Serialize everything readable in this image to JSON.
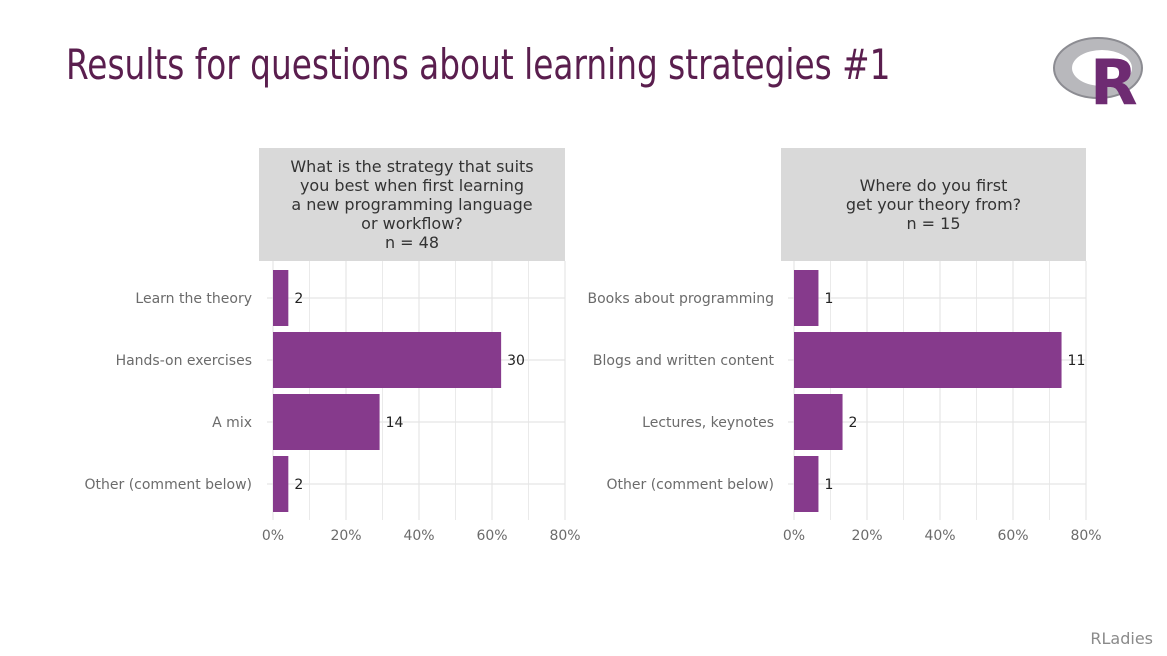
{
  "slide": {
    "title": "Results for questions about learning strategies #1",
    "footer": "RLadies",
    "logo_text": "R"
  },
  "colors": {
    "bar": "#863a8c",
    "title": "#5a1e4e",
    "panel_header": "#d9d9d9",
    "grid": "#e5e5e5"
  },
  "chart_data": [
    {
      "type": "bar",
      "orientation": "horizontal",
      "title": "What is the strategy that suits\nyou best when first learning\na new programming language\nor workflow?\nn = 48",
      "categories": [
        "Learn the theory",
        "Hands-on exercises",
        "A mix",
        "Other (comment below)"
      ],
      "values": [
        2,
        30,
        14,
        2
      ],
      "percent": [
        4.2,
        62.5,
        29.2,
        4.2
      ],
      "xlim": [
        0,
        80
      ],
      "xticks": [
        "0%",
        "20%",
        "40%",
        "60%",
        "80%"
      ],
      "grid": true,
      "legend": "none"
    },
    {
      "type": "bar",
      "orientation": "horizontal",
      "title": "Where do you first\nget your theory from?\nn = 15",
      "categories": [
        "Books about programming",
        "Blogs and written content",
        "Lectures, keynotes",
        "Other (comment below)"
      ],
      "values": [
        1,
        11,
        2,
        1
      ],
      "percent": [
        6.7,
        73.3,
        13.3,
        6.7
      ],
      "xlim": [
        0,
        80
      ],
      "xticks": [
        "0%",
        "20%",
        "40%",
        "60%",
        "80%"
      ],
      "grid": true,
      "legend": "none"
    }
  ]
}
